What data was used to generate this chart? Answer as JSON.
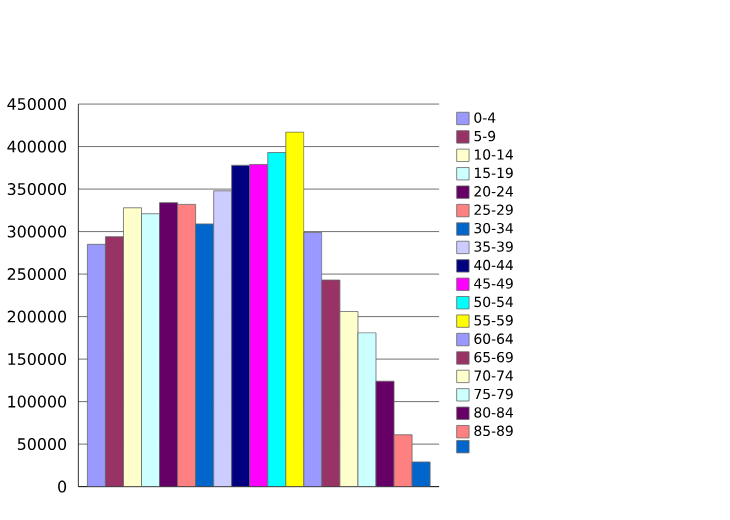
{
  "chart_data": {
    "type": "bar",
    "categories": [
      null
    ],
    "ylim": [
      0,
      450000
    ],
    "yticks": [
      0,
      50000,
      100000,
      150000,
      200000,
      250000,
      300000,
      350000,
      400000,
      450000
    ],
    "grid": "y",
    "legend": "right",
    "series": [
      {
        "name": "0-4",
        "color": "#9999ff",
        "values": [
          285000
        ]
      },
      {
        "name": "5-9",
        "color": "#993366",
        "values": [
          294000
        ]
      },
      {
        "name": "10-14",
        "color": "#ffffcc",
        "values": [
          328000
        ]
      },
      {
        "name": "15-19",
        "color": "#ccffff",
        "values": [
          321000
        ]
      },
      {
        "name": "20-24",
        "color": "#660066",
        "values": [
          334000
        ]
      },
      {
        "name": "25-29",
        "color": "#ff8080",
        "values": [
          332000
        ]
      },
      {
        "name": "30-34",
        "color": "#0066cc",
        "values": [
          309000
        ]
      },
      {
        "name": "35-39",
        "color": "#ccccff",
        "values": [
          348000
        ]
      },
      {
        "name": "40-44",
        "color": "#000080",
        "values": [
          378000
        ]
      },
      {
        "name": "45-49",
        "color": "#ff00ff",
        "values": [
          379000
        ]
      },
      {
        "name": "50-54",
        "color": "#00ffff",
        "values": [
          393000
        ]
      },
      {
        "name": "55-59",
        "color": "#ffff00",
        "values": [
          417000
        ]
      },
      {
        "name": "60-64",
        "color": "#9999ff",
        "values": [
          299000
        ]
      },
      {
        "name": "65-69",
        "color": "#993366",
        "values": [
          243000
        ]
      },
      {
        "name": "70-74",
        "color": "#ffffcc",
        "values": [
          206000
        ]
      },
      {
        "name": "75-79",
        "color": "#ccffff",
        "values": [
          181000
        ]
      },
      {
        "name": "80-84",
        "color": "#660066",
        "values": [
          124000
        ]
      },
      {
        "name": "85-89",
        "color": "#ff8080",
        "values": [
          61000
        ]
      },
      {
        "color": "#0066cc",
        "values": [
          29000
        ]
      }
    ]
  }
}
